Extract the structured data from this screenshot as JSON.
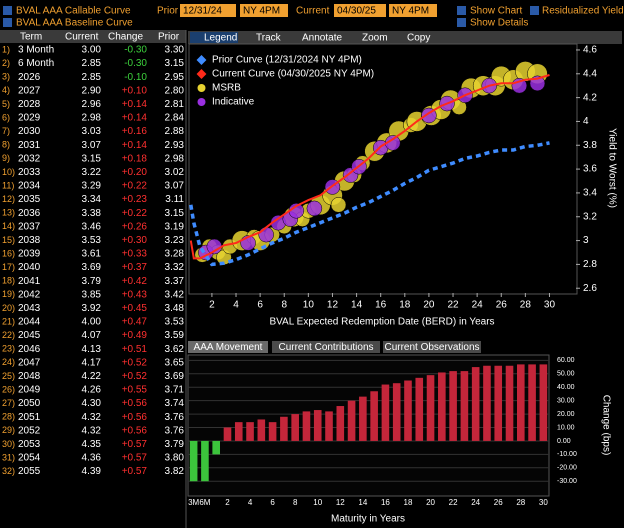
{
  "header": {
    "curves": [
      "BVAL AAA Callable Curve",
      "BVAL AAA Baseline Curve"
    ],
    "prior_label": "Prior",
    "prior_date": "12/31/24",
    "prior_time": "NY 4PM",
    "current_label": "Current",
    "current_date": "04/30/25",
    "current_time": "NY 4PM",
    "options": [
      "Show Chart",
      "Residualized Yield",
      "Show Details"
    ]
  },
  "table": {
    "columns": [
      "Term",
      "Current",
      "Change",
      "Prior"
    ],
    "rows": [
      [
        "1)",
        "3 Month",
        "3.00",
        "-0.30",
        "3.30"
      ],
      [
        "2)",
        "6 Month",
        "2.85",
        "-0.30",
        "3.15"
      ],
      [
        "3)",
        "2026",
        "2.85",
        "-0.10",
        "2.95"
      ],
      [
        "4)",
        "2027",
        "2.90",
        "+0.10",
        "2.80"
      ],
      [
        "5)",
        "2028",
        "2.96",
        "+0.14",
        "2.81"
      ],
      [
        "6)",
        "2029",
        "2.98",
        "+0.14",
        "2.84"
      ],
      [
        "7)",
        "2030",
        "3.03",
        "+0.16",
        "2.88"
      ],
      [
        "8)",
        "2031",
        "3.07",
        "+0.14",
        "2.93"
      ],
      [
        "9)",
        "2032",
        "3.15",
        "+0.18",
        "2.98"
      ],
      [
        "10)",
        "2033",
        "3.22",
        "+0.20",
        "3.02"
      ],
      [
        "11)",
        "2034",
        "3.29",
        "+0.22",
        "3.07"
      ],
      [
        "12)",
        "2035",
        "3.34",
        "+0.23",
        "3.11"
      ],
      [
        "13)",
        "2036",
        "3.38",
        "+0.22",
        "3.15"
      ],
      [
        "14)",
        "2037",
        "3.46",
        "+0.26",
        "3.19"
      ],
      [
        "15)",
        "2038",
        "3.53",
        "+0.30",
        "3.23"
      ],
      [
        "16)",
        "2039",
        "3.61",
        "+0.33",
        "3.28"
      ],
      [
        "17)",
        "2040",
        "3.69",
        "+0.37",
        "3.32"
      ],
      [
        "18)",
        "2041",
        "3.79",
        "+0.42",
        "3.37"
      ],
      [
        "19)",
        "2042",
        "3.85",
        "+0.43",
        "3.42"
      ],
      [
        "20)",
        "2043",
        "3.92",
        "+0.45",
        "3.48"
      ],
      [
        "21)",
        "2044",
        "4.00",
        "+0.47",
        "3.53"
      ],
      [
        "22)",
        "2045",
        "4.07",
        "+0.49",
        "3.59"
      ],
      [
        "23)",
        "2046",
        "4.13",
        "+0.51",
        "3.62"
      ],
      [
        "24)",
        "2047",
        "4.17",
        "+0.52",
        "3.65"
      ],
      [
        "25)",
        "2048",
        "4.22",
        "+0.52",
        "3.69"
      ],
      [
        "26)",
        "2049",
        "4.26",
        "+0.55",
        "3.71"
      ],
      [
        "27)",
        "2050",
        "4.30",
        "+0.56",
        "3.74"
      ],
      [
        "28)",
        "2051",
        "4.32",
        "+0.56",
        "3.76"
      ],
      [
        "29)",
        "2052",
        "4.32",
        "+0.56",
        "3.76"
      ],
      [
        "30)",
        "2053",
        "4.35",
        "+0.57",
        "3.79"
      ],
      [
        "31)",
        "2054",
        "4.36",
        "+0.57",
        "3.80"
      ],
      [
        "32)",
        "2055",
        "4.39",
        "+0.57",
        "3.82"
      ]
    ]
  },
  "curve_chart": {
    "type": "line-bubble",
    "tabs": [
      "Legend",
      "Track",
      "Annotate",
      "Zoom",
      "Copy"
    ],
    "x_label": "BVAL Expected Redemption Date (BERD) in Years",
    "y_label": "Yield to Worst (%)",
    "xlim": [
      0.1,
      32.2
    ],
    "ylim": [
      2.56,
      4.65
    ],
    "xticks": [
      2,
      4,
      6,
      8,
      10,
      12,
      14,
      16,
      18,
      20,
      22,
      24,
      26,
      28,
      30
    ],
    "yticks": [
      2.6,
      2.8,
      3,
      3.2,
      3.4,
      3.6,
      3.8,
      4,
      4.2,
      4.4,
      4.6
    ],
    "grid": false,
    "series": [
      {
        "name": "Prior Curve (12/31/2024 NY 4PM)",
        "color": "#3f8cff",
        "dashed": true,
        "marker": "diamond",
        "x": [
          0.25,
          0.5,
          1,
          2,
          3,
          4,
          5,
          6,
          7,
          8,
          9,
          10,
          11,
          12,
          13,
          14,
          15,
          16,
          17,
          18,
          19,
          20,
          21,
          22,
          23,
          24,
          25,
          26,
          27,
          28,
          29,
          30
        ],
        "values": [
          3.3,
          3.15,
          2.95,
          2.8,
          2.81,
          2.84,
          2.88,
          2.93,
          2.98,
          3.02,
          3.07,
          3.11,
          3.15,
          3.19,
          3.23,
          3.28,
          3.32,
          3.37,
          3.42,
          3.48,
          3.53,
          3.59,
          3.62,
          3.65,
          3.69,
          3.71,
          3.74,
          3.76,
          3.76,
          3.79,
          3.8,
          3.82
        ]
      },
      {
        "name": "Current Curve (04/30/2025 NY 4PM)",
        "color": "#ff2a1a",
        "dashed": false,
        "marker": "diamond",
        "x": [
          0.25,
          0.5,
          1,
          2,
          3,
          4,
          5,
          6,
          7,
          8,
          9,
          10,
          11,
          12,
          13,
          14,
          15,
          16,
          17,
          18,
          19,
          20,
          21,
          22,
          23,
          24,
          25,
          26,
          27,
          28,
          29,
          30
        ],
        "values": [
          3.0,
          2.85,
          2.85,
          2.9,
          2.96,
          2.98,
          3.03,
          3.07,
          3.15,
          3.22,
          3.29,
          3.34,
          3.38,
          3.46,
          3.53,
          3.61,
          3.69,
          3.79,
          3.85,
          3.92,
          4.0,
          4.07,
          4.13,
          4.17,
          4.22,
          4.26,
          4.3,
          4.32,
          4.32,
          4.35,
          4.36,
          4.39
        ]
      },
      {
        "name": "MSRB",
        "color": "#e6d230",
        "marker": "circle",
        "x": [
          1.2,
          1.8,
          2.5,
          3,
          3.5,
          4.5,
          5.5,
          6,
          7,
          8,
          8.8,
          9.5,
          10,
          11,
          12,
          12.5,
          13,
          13.8,
          14.5,
          15.5,
          16.5,
          17.5,
          18.5,
          19,
          20.2,
          21,
          21.8,
          22.5,
          23.5,
          24.5,
          25.5,
          26,
          27,
          28,
          29
        ],
        "values": [
          2.88,
          2.95,
          2.9,
          2.86,
          2.95,
          3.0,
          3.03,
          3.0,
          3.05,
          3.12,
          3.2,
          3.18,
          3.25,
          3.3,
          3.38,
          3.3,
          3.5,
          3.55,
          3.65,
          3.75,
          3.82,
          3.92,
          3.97,
          4.0,
          4.05,
          4.1,
          4.18,
          4.12,
          4.28,
          4.3,
          4.3,
          4.38,
          4.35,
          4.42,
          4.4
        ],
        "sizes": [
          2,
          2,
          2,
          2,
          2,
          3,
          2,
          3,
          2,
          2,
          3,
          2,
          2,
          3,
          3,
          2,
          3,
          2,
          2,
          3,
          3,
          3,
          2,
          3,
          3,
          3,
          3,
          2,
          3,
          3,
          3,
          3,
          3,
          3,
          3
        ]
      },
      {
        "name": "Indicative",
        "color": "#9a2fe0",
        "marker": "circle",
        "x": [
          1.5,
          2.2,
          5,
          6.5,
          7.5,
          8.5,
          9,
          10.5,
          12,
          13.5,
          14.2,
          16,
          17,
          20,
          21.5,
          23,
          25,
          27.5,
          29
        ],
        "values": [
          2.9,
          2.95,
          2.98,
          3.05,
          3.15,
          3.18,
          3.25,
          3.27,
          3.45,
          3.55,
          3.62,
          3.78,
          3.82,
          4.05,
          4.15,
          4.22,
          4.3,
          4.3,
          4.32
        ],
        "sizes": [
          2,
          2,
          2,
          2,
          2,
          2,
          2,
          2,
          2,
          2,
          2,
          2,
          2,
          2,
          2,
          2,
          2,
          2,
          2
        ]
      }
    ]
  },
  "change_chart": {
    "type": "bar",
    "tabs": [
      "AAA Movement",
      "Current Contributions",
      "Current Observations"
    ],
    "x_label": "Maturity in Years",
    "y_label": "Change (bps)",
    "positive_color": "#c4263a",
    "negative_color": "#3cc43c",
    "grid": true,
    "categories": [
      "3M",
      "6M",
      null,
      "2",
      null,
      "4",
      null,
      "6",
      null,
      "8",
      null,
      "10",
      null,
      "12",
      null,
      "14",
      null,
      "16",
      null,
      "18",
      null,
      "20",
      null,
      "22",
      null,
      "24",
      null,
      "26",
      null,
      "28",
      null,
      "30"
    ],
    "values": [
      -30,
      -30,
      -10,
      10,
      14,
      14,
      16,
      14,
      18,
      20,
      22,
      23,
      22,
      26,
      30,
      33,
      37,
      42,
      43,
      45,
      47,
      49,
      51,
      52,
      52,
      55,
      56,
      56,
      56,
      57,
      57,
      57
    ],
    "ylim": [
      -41,
      64
    ],
    "yticks": [
      {
        "value": 60,
        "label": "60.00"
      },
      {
        "value": 50,
        "label": "50.00"
      },
      {
        "value": 40,
        "label": "40.00"
      },
      {
        "value": 30,
        "label": "30.00"
      },
      {
        "value": 20,
        "label": "20.00"
      },
      {
        "value": 10,
        "label": "10.00"
      },
      {
        "value": 0,
        "label": "0.00"
      },
      {
        "value": -10,
        "label": "-10.00"
      },
      {
        "value": -20,
        "label": "-20.00"
      },
      {
        "value": -30,
        "label": "-30.00"
      }
    ]
  }
}
